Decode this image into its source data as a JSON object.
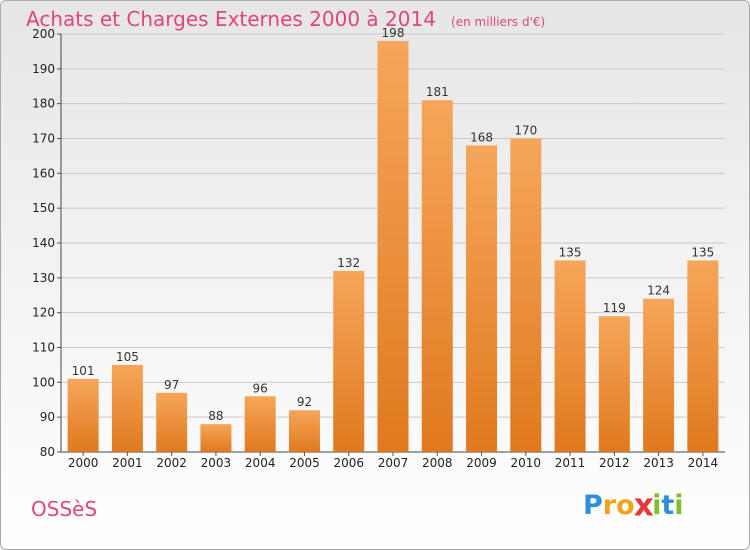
{
  "chart_title": "Achats et Charges Externes 2000 à 2014",
  "chart_subtitle": "(en milliers d'€)",
  "place_name": "OSSèS",
  "brand": {
    "letters": [
      "P",
      "r",
      "o",
      "x",
      "i",
      "t",
      "i"
    ],
    "colors": [
      "#2f8fd8",
      "#f2a11f",
      "#f2a11f",
      "#e23b3b",
      "#7fbf2a",
      "#2f8fd8",
      "#7fbf2a"
    ]
  },
  "colors": {
    "bar_light": "#f6a65a",
    "bar_dark": "#e0791e",
    "title": "#e0457b",
    "grid": "#c8c8c8"
  },
  "chart_data": {
    "type": "bar",
    "title": "Achats et Charges Externes 2000 à 2014",
    "subtitle": "(en milliers d'€)",
    "xlabel": "",
    "ylabel": "",
    "categories": [
      "2000",
      "2001",
      "2002",
      "2003",
      "2004",
      "2005",
      "2006",
      "2007",
      "2008",
      "2009",
      "2010",
      "2011",
      "2012",
      "2013",
      "2014"
    ],
    "values": [
      101,
      105,
      97,
      88,
      96,
      92,
      132,
      198,
      181,
      168,
      170,
      135,
      119,
      124,
      135
    ],
    "ylim": [
      80,
      200
    ],
    "yticks": [
      80,
      90,
      100,
      110,
      120,
      130,
      140,
      150,
      160,
      170,
      180,
      190,
      200
    ],
    "grid": true,
    "legend": "none"
  }
}
